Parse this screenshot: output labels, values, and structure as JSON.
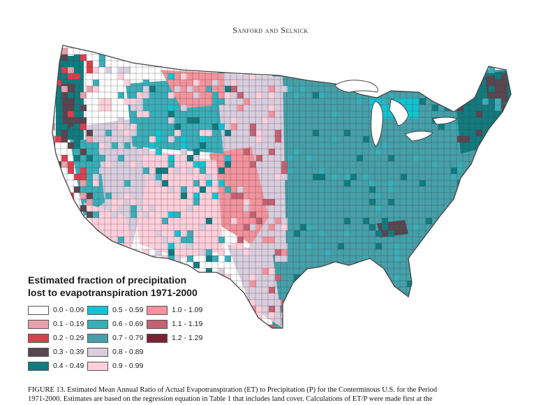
{
  "header": {
    "running_head": "Sanford and Selnick"
  },
  "legend": {
    "title": "Estimated fraction of precipitation\nlost to evapotranspiration 1971-2000",
    "classes": [
      {
        "label": "0.0 - 0.09",
        "color": "#ffffff"
      },
      {
        "label": "0.1 - 0.19",
        "color": "#e8a0ac"
      },
      {
        "label": "0.2 - 0.29",
        "color": "#d9404e"
      },
      {
        "label": "0.3 - 0.39",
        "color": "#5a4650"
      },
      {
        "label": "0.4 - 0.49",
        "color": "#127b7f"
      },
      {
        "label": "0.5 - 0.59",
        "color": "#12c4d2"
      },
      {
        "label": "0.6 - 0.69",
        "color": "#3aaeb8"
      },
      {
        "label": "0.7 - 0.79",
        "color": "#46a0aa"
      },
      {
        "label": "0.8 - 0.89",
        "color": "#d9cdde"
      },
      {
        "label": "0.9 - 0.99",
        "color": "#ffcfdc"
      },
      {
        "label": "1.0 - 1.09",
        "color": "#f4939d"
      },
      {
        "label": "1.1 - 1.19",
        "color": "#c46272"
      },
      {
        "label": "1.2 - 1.29",
        "color": "#7a2230"
      }
    ]
  },
  "caption": {
    "line1": "FIGURE 13. Estimated Mean Annual Ratio of Actual Evapotranspiration (ET) to Precipitation (P) for the Conterminous U.S. for the Period",
    "line2": "1971-2000. Estimates are based on the regression equation in Table 1 that includes land cover. Calculations of ET/P were made first at the"
  },
  "map": {
    "boundary_color": "#555555",
    "county_line_color": "#3d3d3d",
    "water_color": "#ffffff"
  }
}
